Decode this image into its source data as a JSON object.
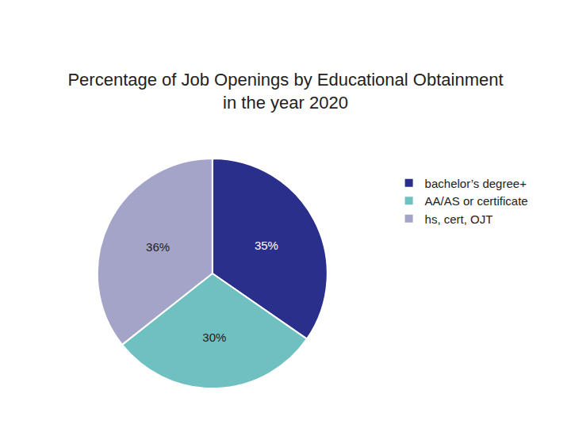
{
  "chart_data": {
    "type": "pie",
    "title": "Percentage of Job Openings by Educational Obtainment\nin the year 2020",
    "categories": [
      "bachelor’s degree+",
      "AA/AS or certificate",
      "hs, cert, OJT"
    ],
    "values": [
      35,
      30,
      36
    ],
    "value_labels": [
      "35%",
      "30%",
      "36%"
    ],
    "colors": [
      "#2b2f8c",
      "#6ec0c1",
      "#a4a4c9"
    ],
    "data_labels": true,
    "legend": "right"
  }
}
